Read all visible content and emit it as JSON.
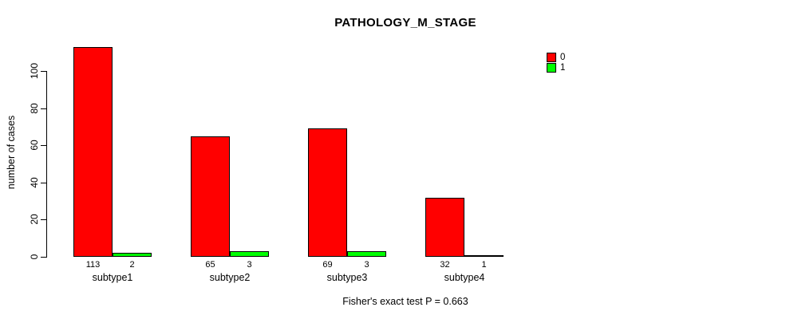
{
  "chart_data": {
    "type": "bar",
    "title": "PATHOLOGY_M_STAGE",
    "categories": [
      "subtype1",
      "subtype2",
      "subtype3",
      "subtype4"
    ],
    "series": [
      {
        "name": "0",
        "color": "#ff0000",
        "values": [
          113,
          65,
          69,
          32
        ]
      },
      {
        "name": "1",
        "color": "#00ff00",
        "values": [
          2,
          3,
          3,
          1
        ]
      }
    ],
    "ylabel": "number of cases",
    "yticks": [
      0,
      20,
      40,
      60,
      80,
      100
    ],
    "ylim": [
      0,
      115
    ],
    "grid": false,
    "legend_position": "top-right",
    "bar_value_labels_shown": true,
    "annotation": "Fisher's exact test P = 0.663",
    "colors": {
      "bar_border": "#000000",
      "text": "#000000",
      "background": "#ffffff"
    }
  }
}
